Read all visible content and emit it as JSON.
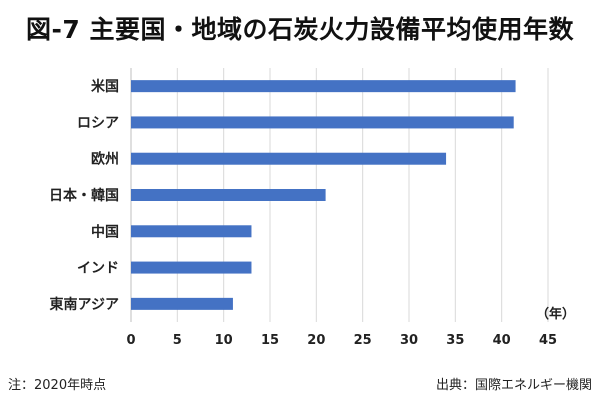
{
  "chart_data": {
    "type": "bar",
    "orientation": "horizontal",
    "title": "図-7 主要国・地域の石炭火力設備平均使用年数",
    "categories": [
      "米国",
      "ロシア",
      "欧州",
      "日本・韓国",
      "中国",
      "インド",
      "東南アジア"
    ],
    "values": [
      41.5,
      41.3,
      34,
      21,
      13,
      13,
      11
    ],
    "xlabel": "（年）",
    "xlim": [
      0,
      45
    ],
    "xticks": [
      0,
      5,
      10,
      15,
      20,
      25,
      30,
      35,
      40,
      45
    ],
    "grid": "vertical",
    "legend": "none",
    "bar_color": "#4472C4"
  },
  "footnote": "注：2020年時点",
  "source": "出典：国際エネルギー機関"
}
